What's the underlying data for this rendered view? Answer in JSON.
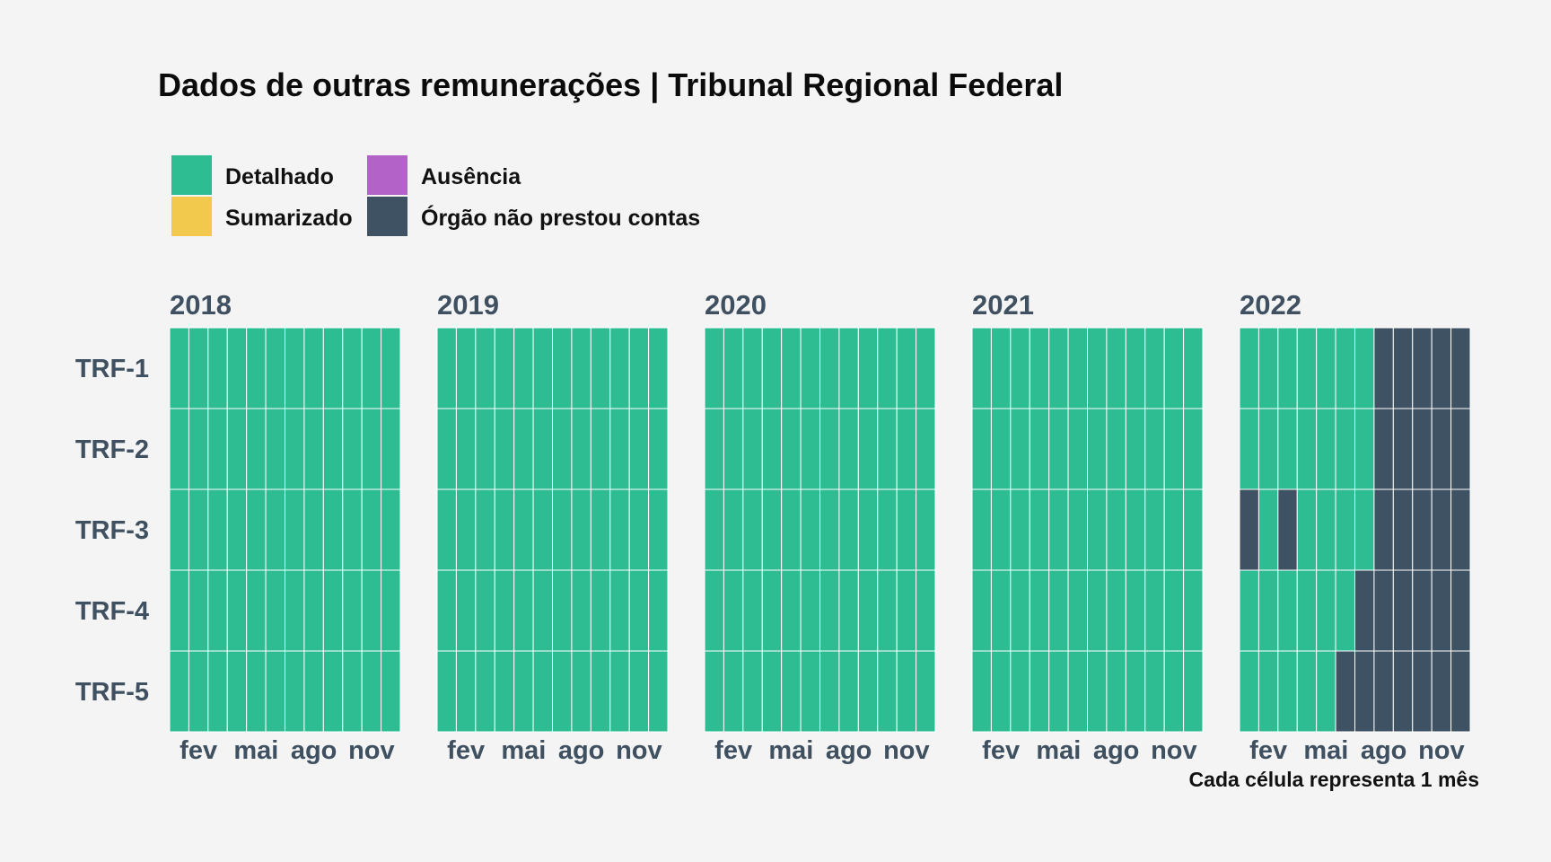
{
  "chart_data": {
    "type": "heatmap",
    "title": "Dados de outras remunerações | Tribunal Regional Federal",
    "caption": "Cada célula representa 1 mês",
    "legend": [
      {
        "key": "detalhado",
        "label": "Detalhado",
        "color": "#2ebd93"
      },
      {
        "key": "ausencia",
        "label": "Ausência",
        "color": "#b362c8"
      },
      {
        "key": "sumarizado",
        "label": "Sumarizado",
        "color": "#f2c94c"
      },
      {
        "key": "nao_prestou",
        "label": "Órgão não prestou contas",
        "color": "#3f5263"
      }
    ],
    "rows": [
      "TRF-1",
      "TRF-2",
      "TRF-3",
      "TRF-4",
      "TRF-5"
    ],
    "month_ticks": [
      {
        "month": 2,
        "label": "fev"
      },
      {
        "month": 5,
        "label": "mai"
      },
      {
        "month": 8,
        "label": "ago"
      },
      {
        "month": 11,
        "label": "nov"
      }
    ],
    "years": [
      {
        "year": "2018",
        "status": {
          "TRF-1": [
            "D",
            "D",
            "D",
            "D",
            "D",
            "D",
            "D",
            "D",
            "D",
            "D",
            "D",
            "D"
          ],
          "TRF-2": [
            "D",
            "D",
            "D",
            "D",
            "D",
            "D",
            "D",
            "D",
            "D",
            "D",
            "D",
            "D"
          ],
          "TRF-3": [
            "D",
            "D",
            "D",
            "D",
            "D",
            "D",
            "D",
            "D",
            "D",
            "D",
            "D",
            "D"
          ],
          "TRF-4": [
            "D",
            "D",
            "D",
            "D",
            "D",
            "D",
            "D",
            "D",
            "D",
            "D",
            "D",
            "D"
          ],
          "TRF-5": [
            "D",
            "D",
            "D",
            "D",
            "D",
            "D",
            "D",
            "D",
            "D",
            "D",
            "D",
            "D"
          ]
        }
      },
      {
        "year": "2019",
        "status": {
          "TRF-1": [
            "D",
            "D",
            "D",
            "D",
            "D",
            "D",
            "D",
            "D",
            "D",
            "D",
            "D",
            "D"
          ],
          "TRF-2": [
            "D",
            "D",
            "D",
            "D",
            "D",
            "D",
            "D",
            "D",
            "D",
            "D",
            "D",
            "D"
          ],
          "TRF-3": [
            "D",
            "D",
            "D",
            "D",
            "D",
            "D",
            "D",
            "D",
            "D",
            "D",
            "D",
            "D"
          ],
          "TRF-4": [
            "D",
            "D",
            "D",
            "D",
            "D",
            "D",
            "D",
            "D",
            "D",
            "D",
            "D",
            "D"
          ],
          "TRF-5": [
            "D",
            "D",
            "D",
            "D",
            "D",
            "D",
            "D",
            "D",
            "D",
            "D",
            "D",
            "D"
          ]
        }
      },
      {
        "year": "2020",
        "status": {
          "TRF-1": [
            "D",
            "D",
            "D",
            "D",
            "D",
            "D",
            "D",
            "D",
            "D",
            "D",
            "D",
            "D"
          ],
          "TRF-2": [
            "D",
            "D",
            "D",
            "D",
            "D",
            "D",
            "D",
            "D",
            "D",
            "D",
            "D",
            "D"
          ],
          "TRF-3": [
            "D",
            "D",
            "D",
            "D",
            "D",
            "D",
            "D",
            "D",
            "D",
            "D",
            "D",
            "D"
          ],
          "TRF-4": [
            "D",
            "D",
            "D",
            "D",
            "D",
            "D",
            "D",
            "D",
            "D",
            "D",
            "D",
            "D"
          ],
          "TRF-5": [
            "D",
            "D",
            "D",
            "D",
            "D",
            "D",
            "D",
            "D",
            "D",
            "D",
            "D",
            "D"
          ]
        }
      },
      {
        "year": "2021",
        "status": {
          "TRF-1": [
            "D",
            "D",
            "D",
            "D",
            "D",
            "D",
            "D",
            "D",
            "D",
            "D",
            "D",
            "D"
          ],
          "TRF-2": [
            "D",
            "D",
            "D",
            "D",
            "D",
            "D",
            "D",
            "D",
            "D",
            "D",
            "D",
            "D"
          ],
          "TRF-3": [
            "D",
            "D",
            "D",
            "D",
            "D",
            "D",
            "D",
            "D",
            "D",
            "D",
            "D",
            "D"
          ],
          "TRF-4": [
            "D",
            "D",
            "D",
            "D",
            "D",
            "D",
            "D",
            "D",
            "D",
            "D",
            "D",
            "D"
          ],
          "TRF-5": [
            "D",
            "D",
            "D",
            "D",
            "D",
            "D",
            "D",
            "D",
            "D",
            "D",
            "D",
            "D"
          ]
        }
      },
      {
        "year": "2022",
        "status": {
          "TRF-1": [
            "D",
            "D",
            "D",
            "D",
            "D",
            "D",
            "D",
            "N",
            "N",
            "N",
            "N",
            "N"
          ],
          "TRF-2": [
            "D",
            "D",
            "D",
            "D",
            "D",
            "D",
            "D",
            "N",
            "N",
            "N",
            "N",
            "N"
          ],
          "TRF-3": [
            "N",
            "D",
            "N",
            "D",
            "D",
            "D",
            "D",
            "N",
            "N",
            "N",
            "N",
            "N"
          ],
          "TRF-4": [
            "D",
            "D",
            "D",
            "D",
            "D",
            "D",
            "N",
            "N",
            "N",
            "N",
            "N",
            "N"
          ],
          "TRF-5": [
            "D",
            "D",
            "D",
            "D",
            "D",
            "N",
            "N",
            "N",
            "N",
            "N",
            "N",
            "N"
          ]
        }
      }
    ],
    "status_codes": {
      "D": "detalhado",
      "N": "nao_prestou"
    }
  }
}
